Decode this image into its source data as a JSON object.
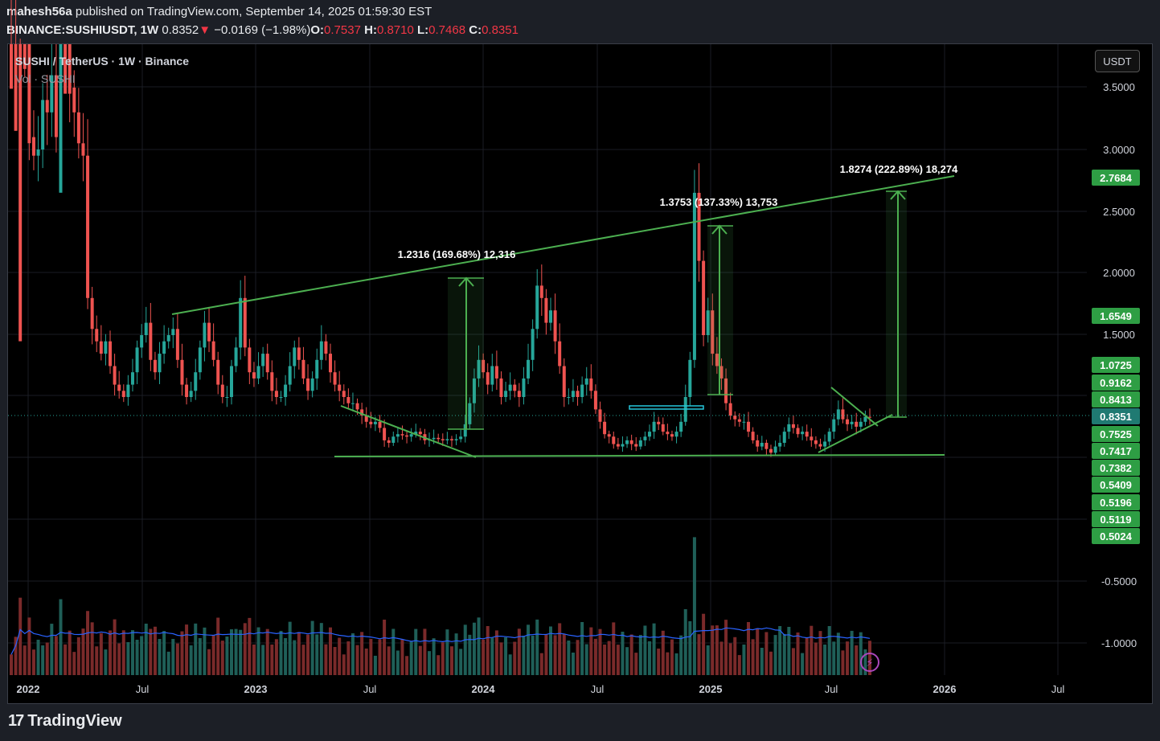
{
  "header": {
    "author": "mahesh56a",
    "published": "published on TradingView.com, September 14, 2025 01:59:30 EST",
    "symbol": "BINANCE:SUSHIUSDT, 1W",
    "last": "0.8352",
    "change": "−0.0169 (−1.98%)",
    "o_label": "O:",
    "o": "0.7537",
    "h_label": "H:",
    "h": "0.8710",
    "l_label": "L:",
    "l": "0.7468",
    "c_label": "C:",
    "c": "0.8351"
  },
  "legend": {
    "title": "SUSHI / TetherUS · 1W · Binance",
    "vol": "Vol · SUSHI"
  },
  "currency_button": "USDT",
  "footer": {
    "brand": "TradingView"
  },
  "colors": {
    "up": "#26a69a",
    "down": "#ef5350",
    "trend": "#4caf50",
    "vol_ma": "#2962ff",
    "background": "#000000"
  },
  "chart_data": {
    "type": "candlestick",
    "timeframe": "1W",
    "x_ticks": [
      "2022",
      "Jul",
      "2023",
      "Jul",
      "2024",
      "Jul",
      "2025",
      "Jul",
      "2026",
      "Jul"
    ],
    "y_ticks": [
      "3.5000",
      "3.0000",
      "2.5000",
      "2.0000",
      "1.5000",
      "-0.5000",
      "-1.0000"
    ],
    "series_closes": [
      7.2,
      6.5,
      4.1,
      3.9,
      3.1,
      2.95,
      3.0,
      3.4,
      3.3,
      3.6,
      3.1,
      4.3,
      3.9,
      3.5,
      3.3,
      3.05,
      2.95,
      1.8,
      1.55,
      1.45,
      1.35,
      1.45,
      1.25,
      1.1,
      1.05,
      1.0,
      1.1,
      1.2,
      1.4,
      1.5,
      1.6,
      1.3,
      1.2,
      1.35,
      1.45,
      1.5,
      1.55,
      1.3,
      1.1,
      1.0,
      1.05,
      1.2,
      1.4,
      1.6,
      1.45,
      1.3,
      1.1,
      1.0,
      1.0,
      1.25,
      1.4,
      1.8,
      1.4,
      1.2,
      1.15,
      1.25,
      1.35,
      1.2,
      1.05,
      1.0,
      1.0,
      1.1,
      1.25,
      1.4,
      1.3,
      1.15,
      1.05,
      1.15,
      1.3,
      1.45,
      1.35,
      1.2,
      1.1,
      1.05,
      1.0,
      0.95,
      0.95,
      0.9,
      0.85,
      0.8,
      0.78,
      0.8,
      0.75,
      0.65,
      0.63,
      0.68,
      0.7,
      0.69,
      0.68,
      0.7,
      0.72,
      0.7,
      0.65,
      0.66,
      0.67,
      0.66,
      0.65,
      0.66,
      0.65,
      0.66,
      0.68,
      0.78,
      0.95,
      1.15,
      1.3,
      1.2,
      1.1,
      1.25,
      1.15,
      1.0,
      1.05,
      1.1,
      1.05,
      1.0,
      1.15,
      1.3,
      1.55,
      1.9,
      1.8,
      1.6,
      1.7,
      1.45,
      1.25,
      1.0,
      1.0,
      1.05,
      1.0,
      1.1,
      1.15,
      1.05,
      0.9,
      0.8,
      0.7,
      0.68,
      0.62,
      0.6,
      0.62,
      0.65,
      0.62,
      0.6,
      0.65,
      0.68,
      0.72,
      0.8,
      0.78,
      0.72,
      0.7,
      0.68,
      0.72,
      0.8,
      1.0,
      1.3,
      2.65,
      2.1,
      1.5,
      1.7,
      1.35,
      1.25,
      1.15,
      0.95,
      0.85,
      0.82,
      0.8,
      0.8,
      0.72,
      0.65,
      0.6,
      0.63,
      0.58,
      0.55,
      0.6,
      0.63,
      0.72,
      0.78,
      0.75,
      0.7,
      0.72,
      0.68,
      0.65,
      0.62,
      0.6,
      0.64,
      0.72,
      0.82,
      0.9,
      0.82,
      0.78,
      0.8,
      0.76,
      0.8,
      0.84,
      0.8351
    ],
    "annotations": [
      {
        "text": "1.2316 (169.68%) 12,316"
      },
      {
        "text": "1.3753 (137.33%) 13,753"
      },
      {
        "text": "1.8274 (222.89%) 18,274"
      }
    ],
    "price_labels": [
      {
        "text": "2.7684",
        "kind": "target"
      },
      {
        "text": "1.6549",
        "kind": "level"
      },
      {
        "text": "1.0725",
        "kind": "level"
      },
      {
        "text": "0.9162",
        "kind": "level"
      },
      {
        "text": "0.8413",
        "kind": "level"
      },
      {
        "text": "0.8351",
        "kind": "current"
      },
      {
        "text": "0.7525",
        "kind": "level"
      },
      {
        "text": "0.7417",
        "kind": "level"
      },
      {
        "text": "0.7382",
        "kind": "level"
      },
      {
        "text": "0.5409",
        "kind": "level"
      },
      {
        "text": "0.5196",
        "kind": "level"
      },
      {
        "text": "0.5119",
        "kind": "level"
      },
      {
        "text": "0.5024",
        "kind": "level"
      }
    ],
    "grid": true
  }
}
